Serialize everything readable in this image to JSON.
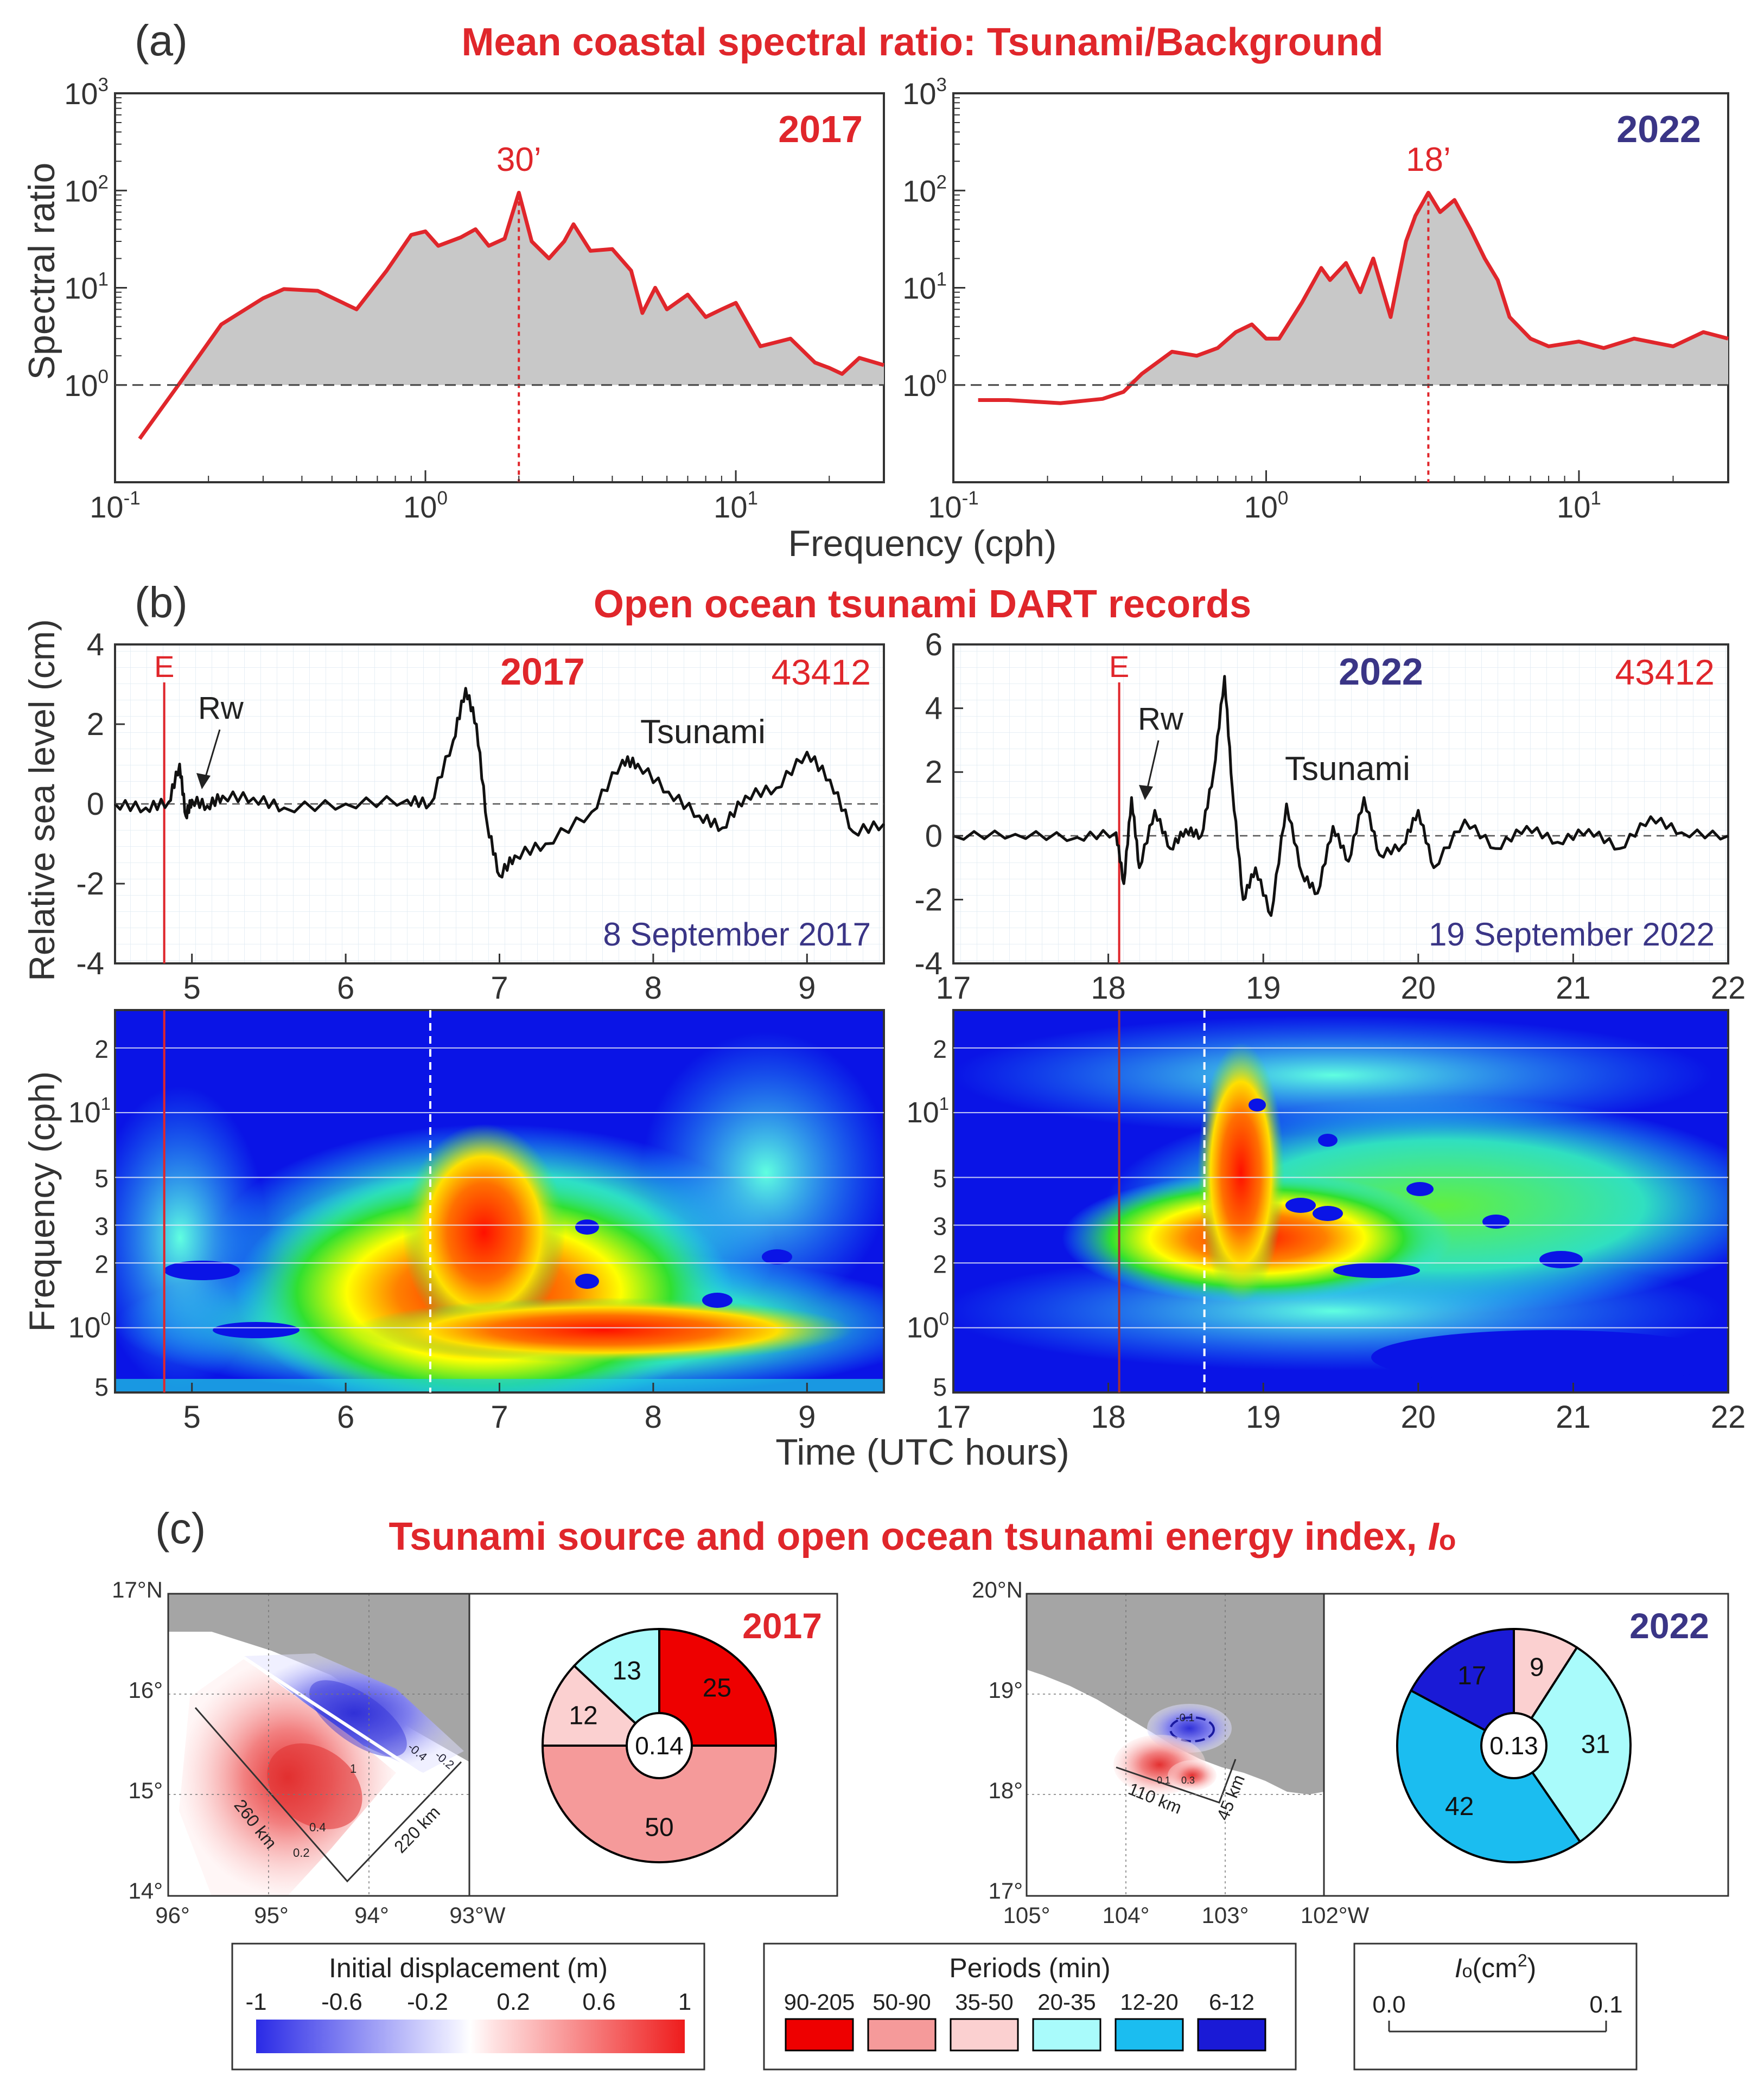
{
  "panel_a": {
    "letter": "(a)",
    "title": "Mean coastal spectral ratio: Tsunami/Background",
    "ylabel": "Spectral ratio",
    "xlabel": "Frequency (cph)",
    "xticks": [
      {
        "base": "10",
        "exp": "-1"
      },
      {
        "base": "10",
        "exp": "0"
      },
      {
        "base": "10",
        "exp": "1"
      }
    ],
    "yticks": [
      {
        "base": "10",
        "exp": "0"
      },
      {
        "base": "10",
        "exp": "1"
      },
      {
        "base": "10",
        "exp": "2"
      },
      {
        "base": "10",
        "exp": "3"
      }
    ]
  },
  "panel_b": {
    "letter": "(b)",
    "title": "Open ocean tsunami DART records",
    "ylabel_top": "Relative sea level (cm)",
    "ylabel_bottom": "Frequency (cph)",
    "xlabel": "Time (UTC hours)",
    "freq_ticks": [
      {
        "label": "2",
        "value": 20,
        "base": "",
        "exp": ""
      },
      {
        "label": "",
        "value": 10,
        "base": "10",
        "exp": "1"
      },
      {
        "label": "5",
        "value": 5,
        "base": "",
        "exp": ""
      },
      {
        "label": "3",
        "value": 3,
        "base": "",
        "exp": ""
      },
      {
        "label": "2",
        "value": 2,
        "base": "",
        "exp": ""
      },
      {
        "label": "",
        "value": 1,
        "base": "10",
        "exp": "0"
      },
      {
        "label": "5",
        "value": 0.5,
        "base": "",
        "exp": ""
      }
    ]
  },
  "panel_c": {
    "letter": "(c)",
    "title_main": "Tsunami source and open ocean tsunami energy index, ",
    "title_symbol": "I",
    "title_sub": "o"
  },
  "colors": {
    "red": "#e0262b",
    "navy": "#3a3586",
    "fill_gray": "#c8c8c8",
    "land_gray": "#a5a5a5"
  },
  "chart_data": [
    {
      "type": "area",
      "panel": "a-2017",
      "label": "2017",
      "peak_label": "30’",
      "peak_freq": 2.0,
      "xscale": "log",
      "yscale": "log",
      "xlim": [
        0.1,
        30
      ],
      "ylim": [
        0.1,
        1000
      ],
      "reference_line": 1,
      "x": [
        0.12,
        0.16,
        0.22,
        0.3,
        0.35,
        0.45,
        0.6,
        0.75,
        0.9,
        1.0,
        1.1,
        1.3,
        1.45,
        1.6,
        1.8,
        2.0,
        2.2,
        2.5,
        2.8,
        3.0,
        3.4,
        4.0,
        4.6,
        5.0,
        5.5,
        6.0,
        7.0,
        8.0,
        9.0,
        10.0,
        12.0,
        15.0,
        18.0,
        20.0,
        22.0,
        25.0,
        30.0
      ],
      "y": [
        0.28,
        1.0,
        4.2,
        7.8,
        9.7,
        9.3,
        6.0,
        15.0,
        35.0,
        38.0,
        27.0,
        33.0,
        40.0,
        27.0,
        32.0,
        95.0,
        30.0,
        20.0,
        30.0,
        45.0,
        24.0,
        25.0,
        15.0,
        5.5,
        10.0,
        6.0,
        8.5,
        5.0,
        6.0,
        7.0,
        2.5,
        3.0,
        1.7,
        1.5,
        1.3,
        1.9,
        1.6
      ]
    },
    {
      "type": "area",
      "panel": "a-2022",
      "label": "2022",
      "peak_label": "18’",
      "peak_freq": 3.3,
      "xscale": "log",
      "yscale": "log",
      "xlim": [
        0.1,
        30
      ],
      "ylim": [
        0.1,
        1000
      ],
      "reference_line": 1,
      "x": [
        0.12,
        0.15,
        0.22,
        0.3,
        0.35,
        0.4,
        0.5,
        0.6,
        0.7,
        0.8,
        0.9,
        1.0,
        1.1,
        1.3,
        1.5,
        1.6,
        1.8,
        2.0,
        2.2,
        2.5,
        2.8,
        3.0,
        3.3,
        3.6,
        4.0,
        4.5,
        5.0,
        5.5,
        6.0,
        7.0,
        8.0,
        10.0,
        12.0,
        15.0,
        20.0,
        25.0,
        30.0
      ],
      "y": [
        0.7,
        0.7,
        0.65,
        0.72,
        0.85,
        1.3,
        2.2,
        2.0,
        2.4,
        3.5,
        4.2,
        3.0,
        3.0,
        7.0,
        16.0,
        12.0,
        18.0,
        9.0,
        20.0,
        5.0,
        30.0,
        55.0,
        95.0,
        60.0,
        80.0,
        40.0,
        20.0,
        12.0,
        5.0,
        3.0,
        2.5,
        2.8,
        2.4,
        3.0,
        2.5,
        3.5,
        3.0
      ]
    },
    {
      "type": "line",
      "panel": "b-2017-sea-level",
      "label": "2017",
      "station": "43412",
      "date": "8 September 2017",
      "event_marker": "E",
      "event_time": 4.82,
      "annotation_rw": "Rw",
      "annotation_tsunami": "Tsunami",
      "xlim": [
        4.5,
        9.5
      ],
      "ylim": [
        -4,
        4
      ],
      "xticks": [
        5,
        6,
        7,
        8,
        9
      ],
      "yticks": [
        -4,
        -2,
        0,
        2,
        4
      ],
      "x": [
        4.5,
        4.7,
        4.85,
        4.92,
        4.96,
        5.0,
        5.1,
        5.2,
        5.4,
        5.6,
        6.0,
        6.4,
        6.55,
        6.7,
        6.78,
        6.85,
        6.92,
        7.0,
        7.1,
        7.3,
        7.6,
        7.8,
        7.9,
        8.1,
        8.3,
        8.45,
        8.6,
        8.8,
        9.0,
        9.15,
        9.3,
        9.5
      ],
      "y": [
        0.0,
        -0.1,
        0.05,
        1.0,
        -0.3,
        0.1,
        -0.05,
        0.2,
        0.15,
        -0.1,
        0.0,
        0.1,
        0.0,
        1.6,
        2.9,
        2.0,
        -0.5,
        -1.8,
        -1.3,
        -1.0,
        -0.2,
        1.1,
        1.0,
        0.3,
        -0.3,
        -0.6,
        0.2,
        0.4,
        1.3,
        0.6,
        -0.7,
        -0.5
      ]
    },
    {
      "type": "line",
      "panel": "b-2022-sea-level",
      "label": "2022",
      "station": "43412",
      "date": "19 September 2022",
      "event_marker": "E",
      "event_time": 18.07,
      "annotation_rw": "Rw",
      "annotation_tsunami": "Tsunami",
      "xlim": [
        17,
        22
      ],
      "ylim": [
        -4,
        6
      ],
      "xticks": [
        17,
        18,
        19,
        20,
        21,
        22
      ],
      "yticks": [
        -4,
        -2,
        0,
        2,
        4,
        6
      ],
      "x": [
        17.0,
        17.4,
        17.8,
        18.05,
        18.1,
        18.15,
        18.2,
        18.3,
        18.4,
        18.5,
        18.6,
        18.68,
        18.75,
        18.8,
        18.87,
        18.95,
        19.05,
        19.15,
        19.25,
        19.35,
        19.45,
        19.55,
        19.65,
        19.75,
        19.9,
        20.0,
        20.1,
        20.3,
        20.5,
        20.7,
        20.9,
        21.1,
        21.3,
        21.5,
        21.7,
        22.0
      ],
      "y": [
        0.0,
        0.05,
        -0.05,
        0.1,
        -1.5,
        1.2,
        -1.0,
        0.8,
        -0.4,
        0.2,
        0.0,
        2.0,
        5.0,
        1.5,
        -2.0,
        -1.0,
        -2.5,
        1.0,
        -1.2,
        -1.8,
        0.3,
        -0.8,
        1.2,
        -0.6,
        -0.3,
        0.8,
        -1.0,
        0.5,
        -0.4,
        0.3,
        -0.2,
        0.2,
        -0.4,
        0.6,
        0.1,
        0.0
      ]
    },
    {
      "type": "heatmap",
      "panel": "b-2017-wavelet",
      "xlim": [
        4.5,
        9.5
      ],
      "yscale": "log",
      "ylim": [
        0.5,
        30
      ],
      "xticks": [
        5,
        6,
        7,
        8,
        9
      ],
      "event_time": 4.82,
      "tsunami_arrival": 6.55
    },
    {
      "type": "heatmap",
      "panel": "b-2022-wavelet",
      "xlim": [
        17,
        22
      ],
      "yscale": "log",
      "ylim": [
        0.5,
        30
      ],
      "xticks": [
        17,
        18,
        19,
        20,
        21,
        22
      ],
      "event_time": 18.07,
      "tsunami_arrival": 18.62
    },
    {
      "type": "pie",
      "panel": "c-2017",
      "label": "2017",
      "center_value": "0.14",
      "categories": [
        "6-12",
        "12-20",
        "20-35",
        "35-50",
        "50-90",
        "90-205"
      ],
      "values": [
        0,
        0,
        13,
        12,
        50,
        25
      ],
      "slice_labels": [
        "",
        "",
        "13",
        "12",
        "50",
        "25"
      ]
    },
    {
      "type": "pie",
      "panel": "c-2022",
      "label": "2022",
      "center_value": "0.13",
      "categories": [
        "6-12",
        "12-20",
        "20-35",
        "35-50",
        "50-90",
        "90-205"
      ],
      "values": [
        17,
        42,
        31,
        9,
        0,
        0
      ],
      "slice_labels": [
        "17",
        "42",
        "31",
        "9",
        "",
        ""
      ]
    }
  ],
  "map_2017": {
    "lat_ticks": [
      "17°N",
      "16°",
      "15°",
      "14°"
    ],
    "lon_ticks": [
      "96°",
      "95°",
      "94°",
      "93°W"
    ],
    "length_label": "260 km",
    "width_label": "220 km",
    "contour_labels": [
      "-0.4",
      "-0.2",
      "1",
      "0.4",
      "0.2"
    ]
  },
  "map_2022": {
    "lat_ticks": [
      "20°N",
      "19°",
      "18°",
      "17°"
    ],
    "lon_ticks": [
      "105°",
      "104°",
      "103°",
      "102°W"
    ],
    "length_label": "110 km",
    "width_label": "45 km",
    "contour_labels": [
      "-0.1",
      "0.1",
      "0.3"
    ]
  },
  "legend_displacement": {
    "title": "Initial displacement (m)",
    "ticks": [
      "-1",
      "-0.6",
      "-0.2",
      "0.2",
      "0.6",
      "1"
    ]
  },
  "legend_periods": {
    "title": "Periods (min)",
    "items": [
      {
        "label": "90-205",
        "color": "#ee0000"
      },
      {
        "label": "50-90",
        "color": "#f59a9a"
      },
      {
        "label": "35-50",
        "color": "#fbd0d0"
      },
      {
        "label": "20-35",
        "color": "#a9fbfb"
      },
      {
        "label": "12-20",
        "color": "#1bbdf0"
      },
      {
        "label": "6-12",
        "color": "#1a1ad6"
      }
    ]
  },
  "legend_energy": {
    "symbol": "I",
    "sub": "o",
    "unit_prefix": "(cm",
    "unit_exp": "2",
    "unit_suffix": ")",
    "tick_min": "0.0",
    "tick_max": "0.1"
  }
}
